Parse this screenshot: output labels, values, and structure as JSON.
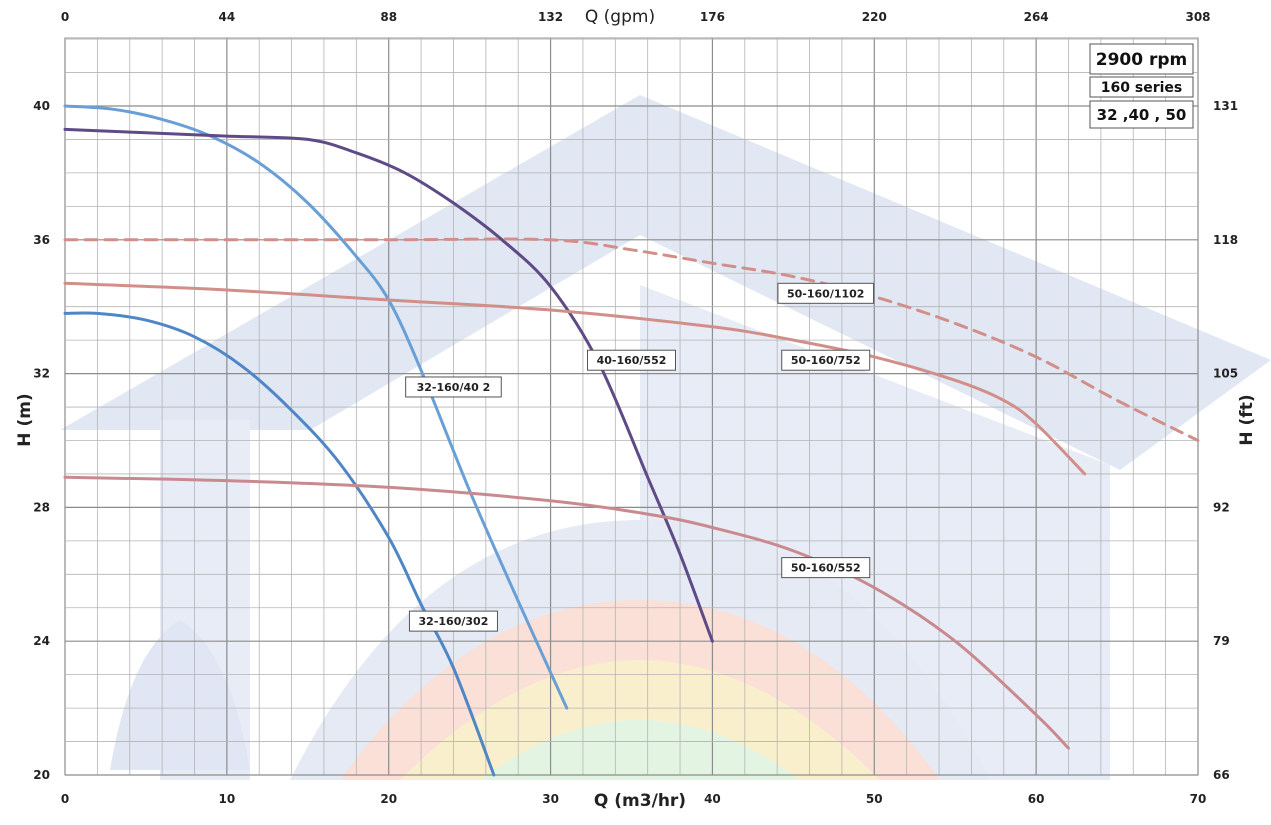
{
  "chart_data": {
    "type": "line",
    "x_axis": {
      "label": "Q (m3/hr)",
      "range": [
        0,
        70
      ],
      "ticks": [
        "0",
        "10",
        "20",
        "30",
        "40",
        "50",
        "60",
        "70"
      ]
    },
    "x2_axis": {
      "label": "Q (gpm)",
      "ticks": [
        "0",
        "44",
        "88",
        "132",
        "176",
        "220",
        "264",
        "308"
      ]
    },
    "y_axis": {
      "label": "H (m)",
      "range": [
        20,
        42
      ],
      "ticks": [
        "20",
        "24",
        "28",
        "32",
        "36",
        "40"
      ]
    },
    "y2_axis": {
      "label": "H (ft)",
      "ticks": [
        "66",
        "79",
        "92",
        "105",
        "118",
        "131"
      ]
    },
    "grid": true,
    "info_box": [
      "2900  rpm",
      "160 series",
      "32 ,40 , 50"
    ],
    "series": [
      {
        "name": "32-160/302",
        "color": "#4f86c6",
        "dashed": false,
        "points": [
          [
            0,
            33.8
          ],
          [
            2,
            33.8
          ],
          [
            5,
            33.6
          ],
          [
            8,
            33.1
          ],
          [
            11,
            32.2
          ],
          [
            14,
            30.9
          ],
          [
            17,
            29.3
          ],
          [
            20,
            27.1
          ],
          [
            22,
            25.1
          ],
          [
            24,
            23.2
          ],
          [
            26.5,
            20.0
          ]
        ]
      },
      {
        "name": "32-160/40 2",
        "color": "#6a9fd6",
        "dashed": false,
        "points": [
          [
            0,
            40.0
          ],
          [
            3,
            39.9
          ],
          [
            6,
            39.6
          ],
          [
            9,
            39.1
          ],
          [
            12,
            38.3
          ],
          [
            15,
            37.1
          ],
          [
            18,
            35.5
          ],
          [
            20,
            34.2
          ],
          [
            22,
            32.1
          ],
          [
            25,
            28.5
          ],
          [
            28,
            25.2
          ],
          [
            31,
            22.0
          ]
        ]
      },
      {
        "name": "40-160/552",
        "color": "#5e4a86",
        "dashed": false,
        "points": [
          [
            0,
            39.3
          ],
          [
            5,
            39.2
          ],
          [
            10,
            39.1
          ],
          [
            15,
            39.0
          ],
          [
            18,
            38.6
          ],
          [
            21,
            38.0
          ],
          [
            24,
            37.1
          ],
          [
            27,
            36.0
          ],
          [
            30,
            34.6
          ],
          [
            33,
            32.3
          ],
          [
            36,
            28.9
          ],
          [
            38,
            26.6
          ],
          [
            40,
            24.0
          ]
        ]
      },
      {
        "name": "50-160/1102",
        "color": "#d28f8a",
        "dashed": true,
        "points": [
          [
            0,
            36.0
          ],
          [
            10,
            36.0
          ],
          [
            20,
            36.0
          ],
          [
            30,
            36.0
          ],
          [
            35,
            35.7
          ],
          [
            40,
            35.3
          ],
          [
            45,
            34.9
          ],
          [
            50,
            34.3
          ],
          [
            55,
            33.5
          ],
          [
            60,
            32.5
          ],
          [
            65,
            31.2
          ],
          [
            70,
            30.0
          ]
        ]
      },
      {
        "name": "50-160/752",
        "color": "#d28f8a",
        "dashed": false,
        "points": [
          [
            0,
            34.7
          ],
          [
            10,
            34.5
          ],
          [
            20,
            34.2
          ],
          [
            30,
            33.9
          ],
          [
            40,
            33.4
          ],
          [
            45,
            33.0
          ],
          [
            50,
            32.5
          ],
          [
            55,
            31.8
          ],
          [
            58,
            31.2
          ],
          [
            60,
            30.5
          ],
          [
            63,
            29.0
          ]
        ]
      },
      {
        "name": "50-160/552",
        "color": "#c98a8f",
        "dashed": false,
        "points": [
          [
            0,
            28.9
          ],
          [
            10,
            28.8
          ],
          [
            20,
            28.6
          ],
          [
            30,
            28.2
          ],
          [
            36,
            27.8
          ],
          [
            40,
            27.4
          ],
          [
            45,
            26.7
          ],
          [
            50,
            25.6
          ],
          [
            55,
            24.0
          ],
          [
            60,
            21.8
          ],
          [
            62,
            20.8
          ]
        ]
      }
    ],
    "labels": [
      {
        "text": "32-160/302",
        "x": 24.0,
        "y": 24.6
      },
      {
        "text": "32-160/40 2",
        "x": 24.0,
        "y": 31.6
      },
      {
        "text": "40-160/552",
        "x": 35.0,
        "y": 32.4
      },
      {
        "text": "50-160/1102",
        "x": 47.0,
        "y": 34.4
      },
      {
        "text": "50-160/752",
        "x": 47.0,
        "y": 32.4
      },
      {
        "text": "50-160/552",
        "x": 47.0,
        "y": 26.2
      }
    ]
  }
}
